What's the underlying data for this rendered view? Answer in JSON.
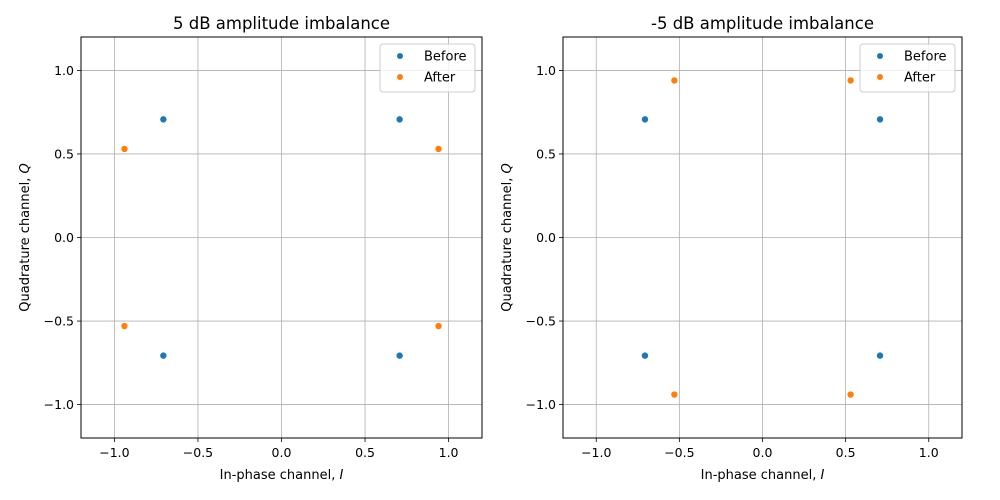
{
  "chart_data": [
    {
      "type": "scatter",
      "title": "5 dB amplitude imbalance",
      "xlabel": "In-phase channel, ",
      "xlabel_var": "I",
      "ylabel": "Quadrature channel, ",
      "ylabel_var": "Q",
      "xlim": [
        -1.2,
        1.2
      ],
      "ylim": [
        -1.2,
        1.2
      ],
      "xticks": [
        -1.0,
        -0.5,
        0.0,
        0.5,
        1.0
      ],
      "yticks": [
        -1.0,
        -0.5,
        0.0,
        0.5,
        1.0
      ],
      "xtick_labels": [
        "−1.0",
        "−0.5",
        "0.0",
        "0.5",
        "1.0"
      ],
      "ytick_labels": [
        "−1.0",
        "−0.5",
        "0.0",
        "0.5",
        "1.0"
      ],
      "grid": true,
      "legend_position": "top-right",
      "series": [
        {
          "name": "Before",
          "color": "#1f77b4",
          "x": [
            -0.707,
            0.707,
            -0.707,
            0.707
          ],
          "y": [
            0.707,
            0.707,
            -0.707,
            -0.707
          ]
        },
        {
          "name": "After",
          "color": "#ff7f0e",
          "x": [
            -0.94,
            0.94,
            -0.94,
            0.94
          ],
          "y": [
            0.53,
            0.53,
            -0.53,
            -0.53
          ]
        }
      ]
    },
    {
      "type": "scatter",
      "title": "-5 dB amplitude imbalance",
      "xlabel": "In-phase channel, ",
      "xlabel_var": "I",
      "ylabel": "Quadrature channel, ",
      "ylabel_var": "Q",
      "xlim": [
        -1.2,
        1.2
      ],
      "ylim": [
        -1.2,
        1.2
      ],
      "xticks": [
        -1.0,
        -0.5,
        0.0,
        0.5,
        1.0
      ],
      "yticks": [
        -1.0,
        -0.5,
        0.0,
        0.5,
        1.0
      ],
      "xtick_labels": [
        "−1.0",
        "−0.5",
        "0.0",
        "0.5",
        "1.0"
      ],
      "ytick_labels": [
        "−1.0",
        "−0.5",
        "0.0",
        "0.5",
        "1.0"
      ],
      "grid": true,
      "legend_position": "top-right",
      "series": [
        {
          "name": "Before",
          "color": "#1f77b4",
          "x": [
            -0.707,
            0.707,
            -0.707,
            0.707
          ],
          "y": [
            0.707,
            0.707,
            -0.707,
            -0.707
          ]
        },
        {
          "name": "After",
          "color": "#ff7f0e",
          "x": [
            -0.53,
            0.53,
            -0.53,
            0.53
          ],
          "y": [
            0.94,
            0.94,
            -0.94,
            -0.94
          ]
        }
      ]
    }
  ]
}
